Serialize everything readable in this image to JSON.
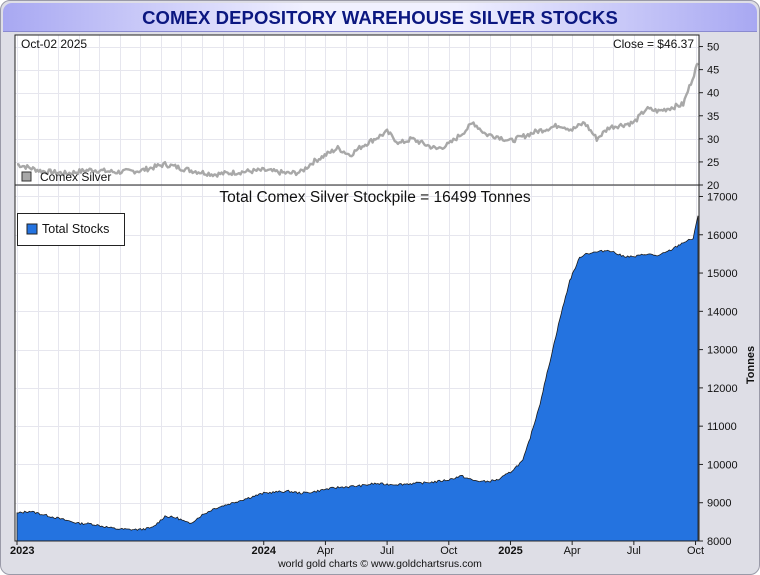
{
  "header": {
    "title": "COMEX DEPOSITORY WAREHOUSE SILVER STOCKS"
  },
  "footer": {
    "credit": "world gold charts © www.goldchartsrus.com"
  },
  "colors": {
    "stocks_fill": "#2473e0",
    "silver_line": "#a8a8a8",
    "title_text": "#0b1780",
    "grid": "#e6e6ee"
  },
  "chart_data": [
    {
      "type": "line",
      "name": "silver-price-panel",
      "date_label": "Oct-02  2025",
      "close_label": "Close = $46.37",
      "legend": "Comex Silver",
      "ylim": [
        20,
        52.5
      ],
      "y_ticks": [
        20,
        25,
        30,
        35,
        40,
        45,
        50
      ],
      "x": [
        2023.0,
        2023.1,
        2023.2,
        2023.3,
        2023.4,
        2023.5,
        2023.6,
        2023.7,
        2023.8,
        2023.9,
        2024.0,
        2024.1,
        2024.15,
        2024.2,
        2024.3,
        2024.35,
        2024.4,
        2024.5,
        2024.55,
        2024.6,
        2024.7,
        2024.75,
        2024.8,
        2024.85,
        2024.9,
        2024.95,
        2025.0,
        2025.1,
        2025.2,
        2025.25,
        2025.3,
        2025.35,
        2025.4,
        2025.5,
        2025.55,
        2025.6,
        2025.7,
        2025.75,
        2025.76
      ],
      "values": [
        24.5,
        23.0,
        22.5,
        23.3,
        22.8,
        23.1,
        24.5,
        23.2,
        22.3,
        22.8,
        23.2,
        22.5,
        22.8,
        25.0,
        28.0,
        26.5,
        28.5,
        31.5,
        29.0,
        30.0,
        27.8,
        28.8,
        31.0,
        33.5,
        31.0,
        30.5,
        29.5,
        31.5,
        33.0,
        32.0,
        33.5,
        30.0,
        32.5,
        33.5,
        36.5,
        36.0,
        37.5,
        45.0,
        46.37
      ],
      "x_ticks": [
        "2023",
        "2024",
        "Apr",
        "Jul",
        "Oct",
        "2025",
        "Apr",
        "Jul",
        "Oct"
      ]
    },
    {
      "type": "area",
      "name": "total-stocks-panel",
      "title": "Total Comex Silver Stockpile = 16499 Tonnes",
      "legend": "Total Stocks",
      "ylabel": "Tonnes",
      "ylim": [
        8000,
        17300
      ],
      "y_ticks": [
        8000,
        9000,
        10000,
        11000,
        12000,
        13000,
        14000,
        15000,
        16000,
        17000
      ],
      "x": [
        2023.0,
        2023.05,
        2023.1,
        2023.15,
        2023.2,
        2023.25,
        2023.3,
        2023.35,
        2023.4,
        2023.45,
        2023.5,
        2023.55,
        2023.6,
        2023.65,
        2023.7,
        2023.75,
        2023.8,
        2023.85,
        2023.9,
        2023.95,
        2024.0,
        2024.05,
        2024.1,
        2024.15,
        2024.2,
        2024.25,
        2024.3,
        2024.35,
        2024.4,
        2024.45,
        2024.5,
        2024.55,
        2024.6,
        2024.65,
        2024.7,
        2024.75,
        2024.8,
        2024.85,
        2024.9,
        2024.95,
        2025.0,
        2025.05,
        2025.08,
        2025.12,
        2025.16,
        2025.2,
        2025.24,
        2025.28,
        2025.3,
        2025.35,
        2025.4,
        2025.45,
        2025.5,
        2025.55,
        2025.6,
        2025.65,
        2025.7,
        2025.74,
        2025.76
      ],
      "values": [
        8720,
        8780,
        8700,
        8620,
        8540,
        8460,
        8450,
        8380,
        8320,
        8300,
        8300,
        8350,
        8650,
        8600,
        8450,
        8680,
        8850,
        8950,
        9050,
        9150,
        9250,
        9280,
        9300,
        9250,
        9280,
        9350,
        9400,
        9420,
        9450,
        9500,
        9480,
        9480,
        9500,
        9520,
        9550,
        9600,
        9700,
        9580,
        9550,
        9600,
        9800,
        10100,
        10700,
        11600,
        12700,
        13800,
        14800,
        15400,
        15500,
        15550,
        15600,
        15450,
        15420,
        15500,
        15450,
        15600,
        15800,
        15900,
        16499
      ],
      "x_ticks": [
        "2023",
        "2024",
        "Apr",
        "Jul",
        "Oct",
        "2025",
        "Apr",
        "Jul",
        "Oct"
      ]
    }
  ]
}
